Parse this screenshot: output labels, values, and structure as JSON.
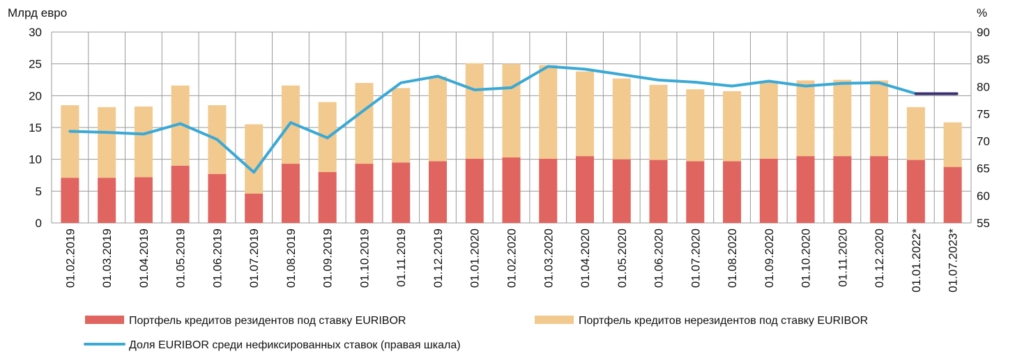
{
  "chart_data": {
    "type": "bar",
    "stacked": true,
    "left_axis_label": "Млрд евро",
    "right_axis_label": "%",
    "ylim": [
      0,
      30
    ],
    "y_ticks": [
      0,
      5,
      10,
      15,
      20,
      25,
      30
    ],
    "y2lim": [
      55,
      90
    ],
    "y2_ticks": [
      55,
      60,
      65,
      70,
      75,
      80,
      85,
      90
    ],
    "grid": true,
    "legend_position": "bottom",
    "categories": [
      "01.02.2019",
      "01.03.2019",
      "01.04.2019",
      "01.05.2019",
      "01.06.2019",
      "01.07.2019",
      "01.08.2019",
      "01.09.2019",
      "01.10.2019",
      "01.11.2019",
      "01.12.2019",
      "01.01.2020",
      "01.02.2020",
      "01.03.2020",
      "01.04.2020",
      "01.05.2020",
      "01.06.2020",
      "01.07.2020",
      "01.08.2020",
      "01.09.2020",
      "01.10.2020",
      "01.11.2020",
      "01.12.2020",
      "01.01.2022*",
      "01.07.2023*"
    ],
    "series": [
      {
        "name": "Портфель кредитов резидентов под ставку EURIBOR",
        "kind": "bar",
        "axis": "left",
        "color": "#e0645f",
        "values": [
          7.1,
          7.1,
          7.2,
          9.0,
          7.7,
          4.6,
          9.3,
          8.0,
          9.3,
          9.5,
          9.7,
          10.1,
          10.3,
          10.1,
          10.5,
          10.0,
          9.9,
          9.7,
          9.7,
          10.1,
          10.5,
          10.5,
          10.5,
          9.9,
          8.8
        ]
      },
      {
        "name": "Портфель кредитов нерезидентов под ставку EURIBOR",
        "kind": "bar",
        "axis": "left",
        "color": "#f2c98e",
        "values": [
          11.4,
          11.1,
          11.1,
          12.6,
          10.8,
          10.9,
          12.3,
          11.0,
          12.7,
          11.7,
          13.3,
          15.0,
          14.7,
          14.7,
          13.3,
          12.7,
          11.8,
          11.3,
          11.0,
          12.0,
          11.9,
          12.0,
          11.9,
          8.3,
          7.0
        ]
      },
      {
        "name": "Доля EURIBOR среди нефиксированных ставок (правая шкала)",
        "kind": "line",
        "axis": "right",
        "color": "#3aa9d6",
        "values": [
          71.8,
          71.6,
          71.3,
          73.2,
          70.3,
          64.3,
          73.4,
          70.6,
          75.7,
          80.7,
          81.9,
          79.4,
          79.8,
          83.7,
          83.2,
          82.2,
          81.2,
          80.8,
          80.1,
          81.0,
          80.1,
          80.6,
          80.7,
          78.7,
          78.7
        ]
      }
    ],
    "forecast_segment_color": "#3a2f73"
  }
}
